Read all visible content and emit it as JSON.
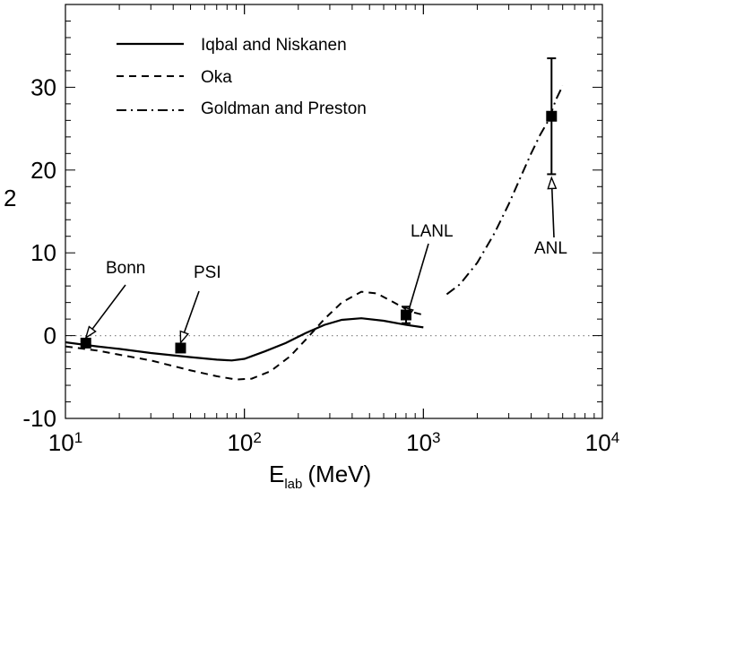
{
  "chart_data": {
    "type": "line",
    "xscale": "log",
    "xlim": [
      10,
      10000
    ],
    "ylim": [
      -10,
      40
    ],
    "xlabel": "E",
    "xlabel_sub": "lab",
    "xlabel_unit": "(MeV)",
    "ylabel": "2",
    "x_ticks": [
      {
        "value": 10,
        "base": "10",
        "exp": "1"
      },
      {
        "value": 100,
        "base": "10",
        "exp": "2"
      },
      {
        "value": 1000,
        "base": "10",
        "exp": "3"
      },
      {
        "value": 10000,
        "base": "10",
        "exp": "4"
      }
    ],
    "y_ticks": [
      {
        "value": -10,
        "label": "-10"
      },
      {
        "value": 0,
        "label": "0"
      },
      {
        "value": 10,
        "label": "10"
      },
      {
        "value": 20,
        "label": "20"
      },
      {
        "value": 30,
        "label": "30"
      }
    ],
    "zero_line": true,
    "legend_position": "top-left",
    "series": [
      {
        "name": "Iqbal and Niskanen",
        "style": "solid",
        "points": [
          [
            10,
            -0.8
          ],
          [
            15,
            -1.3
          ],
          [
            20,
            -1.6
          ],
          [
            30,
            -2.1
          ],
          [
            50,
            -2.6
          ],
          [
            70,
            -2.9
          ],
          [
            85,
            -3.0
          ],
          [
            100,
            -2.8
          ],
          [
            130,
            -1.9
          ],
          [
            170,
            -0.9
          ],
          [
            220,
            0.3
          ],
          [
            280,
            1.3
          ],
          [
            350,
            1.9
          ],
          [
            450,
            2.1
          ],
          [
            600,
            1.8
          ],
          [
            800,
            1.3
          ],
          [
            1000,
            1.0
          ]
        ]
      },
      {
        "name": "Oka",
        "style": "dashed",
        "points": [
          [
            10,
            -1.3
          ],
          [
            15,
            -1.8
          ],
          [
            20,
            -2.3
          ],
          [
            30,
            -3.0
          ],
          [
            50,
            -4.2
          ],
          [
            70,
            -4.9
          ],
          [
            90,
            -5.3
          ],
          [
            110,
            -5.2
          ],
          [
            140,
            -4.3
          ],
          [
            180,
            -2.5
          ],
          [
            220,
            -0.5
          ],
          [
            280,
            2.0
          ],
          [
            350,
            4.0
          ],
          [
            450,
            5.3
          ],
          [
            550,
            5.1
          ],
          [
            700,
            3.9
          ],
          [
            850,
            2.9
          ],
          [
            1000,
            2.5
          ]
        ]
      },
      {
        "name": "Goldman and Preston",
        "style": "dashdot",
        "points": [
          [
            1350,
            5.0
          ],
          [
            1600,
            6.2
          ],
          [
            2000,
            8.8
          ],
          [
            2500,
            12.4
          ],
          [
            3000,
            15.9
          ],
          [
            3500,
            19.2
          ],
          [
            4000,
            22.0
          ],
          [
            4500,
            24.3
          ],
          [
            5000,
            26.0
          ],
          [
            5500,
            28.5
          ],
          [
            6000,
            30.2
          ]
        ]
      }
    ],
    "data_points": [
      {
        "name": "Bonn",
        "x": 13,
        "y": -0.9
      },
      {
        "name": "PSI",
        "x": 44,
        "y": -1.5
      },
      {
        "name": "LANL",
        "x": 800,
        "y": 2.5,
        "err_low": 1.5,
        "err_high": 3.5
      },
      {
        "name": "ANL",
        "x": 5200,
        "y": 26.5,
        "err_low": 19.5,
        "err_high": 33.5
      }
    ]
  }
}
